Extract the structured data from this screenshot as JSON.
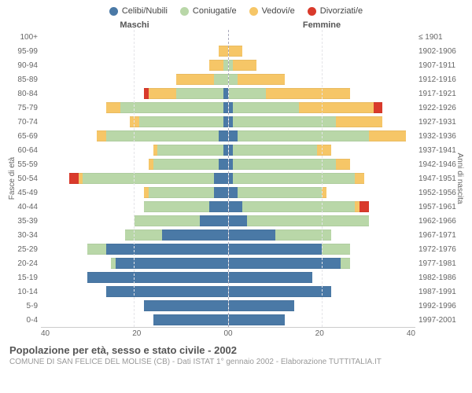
{
  "legend": [
    {
      "label": "Celibi/Nubili",
      "color": "#4a79a6"
    },
    {
      "label": "Coniugati/e",
      "color": "#b9d7a8"
    },
    {
      "label": "Vedovi/e",
      "color": "#f6c667"
    },
    {
      "label": "Divorziati/e",
      "color": "#d93a2b"
    }
  ],
  "headers": {
    "male": "Maschi",
    "female": "Femmine"
  },
  "y_axis_left_label": "Fasce di età",
  "y_axis_right_label": "Anni di nascita",
  "x_max": 40,
  "x_ticks_left": [
    "40",
    "20",
    "0"
  ],
  "x_ticks_right": [
    "0",
    "20",
    "40"
  ],
  "footer_title": "Popolazione per età, sesso e stato civile - 2002",
  "footer_sub": "COMUNE DI SAN FELICE DEL MOLISE (CB) - Dati ISTAT 1° gennaio 2002 - Elaborazione TUTTITALIA.IT",
  "rows": [
    {
      "age": "100+",
      "birth": "≤ 1901",
      "m": [
        0,
        0,
        0,
        0
      ],
      "f": [
        0,
        0,
        0,
        0
      ]
    },
    {
      "age": "95-99",
      "birth": "1902-1906",
      "m": [
        0,
        0,
        2,
        0
      ],
      "f": [
        0,
        0,
        3,
        0
      ]
    },
    {
      "age": "90-94",
      "birth": "1907-1911",
      "m": [
        0,
        1,
        3,
        0
      ],
      "f": [
        0,
        1,
        5,
        0
      ]
    },
    {
      "age": "85-89",
      "birth": "1912-1916",
      "m": [
        0,
        3,
        8,
        0
      ],
      "f": [
        0,
        2,
        10,
        0
      ]
    },
    {
      "age": "80-84",
      "birth": "1917-1921",
      "m": [
        1,
        10,
        6,
        1
      ],
      "f": [
        0,
        8,
        18,
        0
      ]
    },
    {
      "age": "75-79",
      "birth": "1922-1926",
      "m": [
        1,
        22,
        3,
        0
      ],
      "f": [
        1,
        14,
        16,
        2
      ]
    },
    {
      "age": "70-74",
      "birth": "1927-1931",
      "m": [
        1,
        18,
        2,
        0
      ],
      "f": [
        1,
        22,
        10,
        0
      ]
    },
    {
      "age": "65-69",
      "birth": "1932-1936",
      "m": [
        2,
        24,
        2,
        0
      ],
      "f": [
        2,
        28,
        8,
        0
      ]
    },
    {
      "age": "60-64",
      "birth": "1937-1941",
      "m": [
        1,
        14,
        1,
        0
      ],
      "f": [
        1,
        18,
        3,
        0
      ]
    },
    {
      "age": "55-59",
      "birth": "1942-1946",
      "m": [
        2,
        14,
        1,
        0
      ],
      "f": [
        1,
        22,
        3,
        0
      ]
    },
    {
      "age": "50-54",
      "birth": "1947-1951",
      "m": [
        3,
        28,
        1,
        2
      ],
      "f": [
        1,
        26,
        2,
        0
      ]
    },
    {
      "age": "45-49",
      "birth": "1952-1956",
      "m": [
        3,
        14,
        1,
        0
      ],
      "f": [
        2,
        18,
        1,
        0
      ]
    },
    {
      "age": "40-44",
      "birth": "1957-1961",
      "m": [
        4,
        14,
        0,
        0
      ],
      "f": [
        3,
        24,
        1,
        2
      ]
    },
    {
      "age": "35-39",
      "birth": "1962-1966",
      "m": [
        6,
        14,
        0,
        0
      ],
      "f": [
        4,
        26,
        0,
        0
      ]
    },
    {
      "age": "30-34",
      "birth": "1967-1971",
      "m": [
        14,
        8,
        0,
        0
      ],
      "f": [
        10,
        12,
        0,
        0
      ]
    },
    {
      "age": "25-29",
      "birth": "1972-1976",
      "m": [
        26,
        4,
        0,
        0
      ],
      "f": [
        20,
        6,
        0,
        0
      ]
    },
    {
      "age": "20-24",
      "birth": "1977-1981",
      "m": [
        24,
        1,
        0,
        0
      ],
      "f": [
        24,
        2,
        0,
        0
      ]
    },
    {
      "age": "15-19",
      "birth": "1982-1986",
      "m": [
        30,
        0,
        0,
        0
      ],
      "f": [
        18,
        0,
        0,
        0
      ]
    },
    {
      "age": "10-14",
      "birth": "1987-1991",
      "m": [
        26,
        0,
        0,
        0
      ],
      "f": [
        22,
        0,
        0,
        0
      ]
    },
    {
      "age": "5-9",
      "birth": "1992-1996",
      "m": [
        18,
        0,
        0,
        0
      ],
      "f": [
        14,
        0,
        0,
        0
      ]
    },
    {
      "age": "0-4",
      "birth": "1997-2001",
      "m": [
        16,
        0,
        0,
        0
      ],
      "f": [
        12,
        0,
        0,
        0
      ]
    }
  ],
  "grid_positions_pct": [
    50
  ]
}
